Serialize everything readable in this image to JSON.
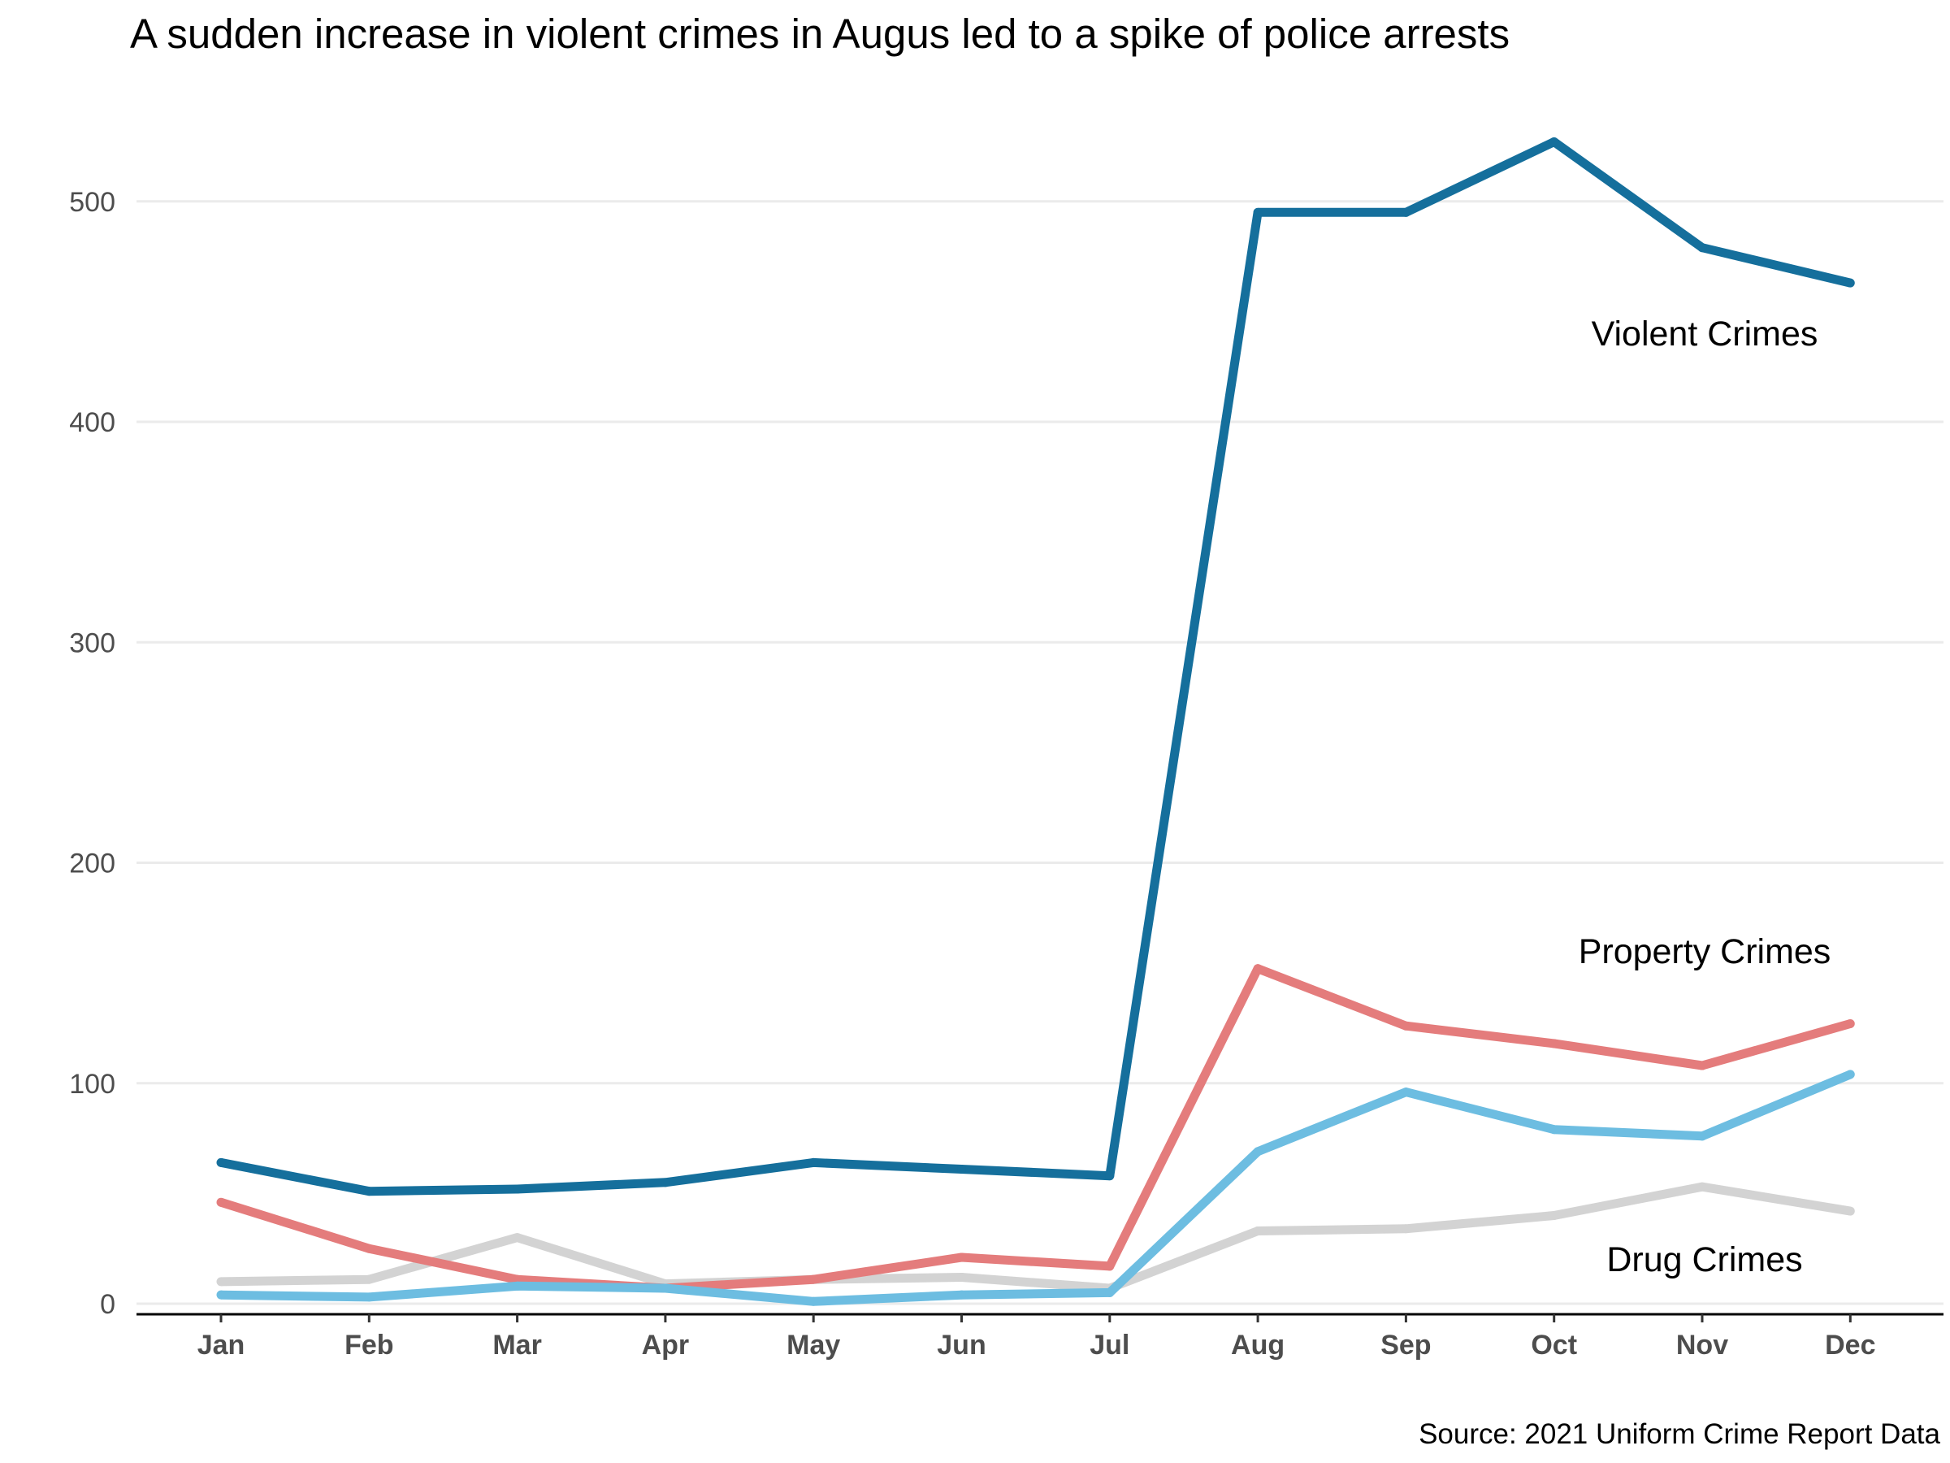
{
  "chart_data": {
    "type": "line",
    "title": "A sudden increase in violent crimes in Augus led to a spike of police arrests",
    "caption": "Source: 2021 Uniform Crime Report Data",
    "xlabel": "",
    "ylabel": "",
    "categories": [
      "Jan",
      "Feb",
      "Mar",
      "Apr",
      "May",
      "Jun",
      "Jul",
      "Aug",
      "Sep",
      "Oct",
      "Nov",
      "Dec"
    ],
    "ylim": [
      0,
      545
    ],
    "yticks": [
      0,
      100,
      200,
      300,
      400,
      500
    ],
    "grid": "horizontal major",
    "legend": "direct labels",
    "series": [
      {
        "key": "drug_gray",
        "color": "#d3d3d3",
        "values": [
          10,
          11,
          30,
          9,
          11,
          12,
          7,
          33,
          34,
          40,
          53,
          42
        ]
      },
      {
        "key": "property",
        "name": "Property Crimes",
        "color": "#e47c7c",
        "values": [
          46,
          25,
          11,
          7,
          11,
          21,
          17,
          152,
          126,
          118,
          108,
          127
        ]
      },
      {
        "key": "drug_blue",
        "name": "Drug Crimes",
        "color": "#6dbde1",
        "values": [
          4,
          3,
          8,
          7,
          1,
          4,
          5,
          69,
          96,
          79,
          76,
          104
        ]
      },
      {
        "key": "violent",
        "name": "Violent Crimes",
        "color": "#156f9c",
        "values": [
          64,
          51,
          52,
          55,
          64,
          61,
          58,
          495,
          495,
          527,
          479,
          463
        ]
      }
    ]
  }
}
